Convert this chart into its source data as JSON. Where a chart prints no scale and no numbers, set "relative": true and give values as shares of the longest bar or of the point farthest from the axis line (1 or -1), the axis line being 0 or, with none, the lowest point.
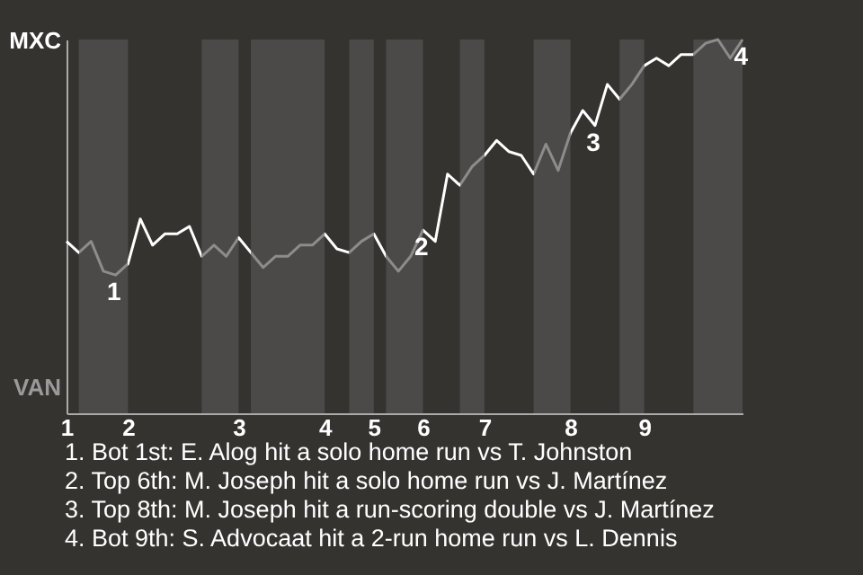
{
  "chart_data": {
    "type": "line",
    "categories": [
      "1",
      null,
      null,
      null,
      null,
      "2",
      null,
      null,
      null,
      null,
      null,
      null,
      null,
      null,
      "3",
      null,
      null,
      null,
      null,
      null,
      null,
      "4",
      null,
      null,
      null,
      "5",
      null,
      null,
      null,
      "6",
      null,
      null,
      null,
      null,
      "7",
      null,
      null,
      null,
      null,
      null,
      null,
      "8",
      null,
      null,
      null,
      null,
      null,
      "9",
      null,
      null,
      null,
      null,
      null,
      null,
      null,
      null
    ],
    "values": [
      0.46,
      0.43,
      0.46,
      0.38,
      0.37,
      0.4,
      0.52,
      0.45,
      0.48,
      0.48,
      0.5,
      0.42,
      0.45,
      0.42,
      0.47,
      0.43,
      0.39,
      0.42,
      0.42,
      0.45,
      0.45,
      0.48,
      0.44,
      0.43,
      0.46,
      0.48,
      0.42,
      0.38,
      0.42,
      0.49,
      0.46,
      0.64,
      0.61,
      0.66,
      0.69,
      0.73,
      0.7,
      0.69,
      0.64,
      0.72,
      0.65,
      0.75,
      0.81,
      0.77,
      0.88,
      0.84,
      0.88,
      0.93,
      0.95,
      0.93,
      0.96,
      0.96,
      0.99,
      1,
      0.95,
      1
    ],
    "colors": [
      "#ffffff",
      "#8c8c8c",
      "#8c8c8c",
      "#8c8c8c",
      "#8c8c8c",
      "#ffffff",
      "#ffffff",
      "#ffffff",
      "#ffffff",
      "#ffffff",
      "#ffffff",
      "#8c8c8c",
      "#8c8c8c",
      "#8c8c8c",
      "#ffffff",
      "#8c8c8c",
      "#8c8c8c",
      "#8c8c8c",
      "#8c8c8c",
      "#8c8c8c",
      "#8c8c8c",
      "#ffffff",
      "#ffffff",
      "#8c8c8c",
      "#8c8c8c",
      "#ffffff",
      "#8c8c8c",
      "#8c8c8c",
      "#8c8c8c",
      "#ffffff",
      "#ffffff",
      "#ffffff",
      "#8c8c8c",
      "#8c8c8c",
      "#ffffff",
      "#ffffff",
      "#ffffff",
      "#ffffff",
      "#8c8c8c",
      "#8c8c8c",
      "#8c8c8c",
      "#ffffff",
      "#ffffff",
      "#ffffff",
      "#ffffff",
      "#8c8c8c",
      "#8c8c8c",
      "#ffffff",
      "#ffffff",
      "#ffffff",
      "#ffffff",
      "#8c8c8c",
      "#8c8c8c",
      "#8c8c8c",
      "#8c8c8c",
      "#8c8c8c"
    ],
    "relative": true,
    "annotations": [
      "MXC",
      "VAN",
      {
        "text": "1",
        "y": 0.37
      },
      {
        "text": "2",
        "y": 0.49
      },
      {
        "text": "3",
        "y": 0.77
      },
      {
        "text": "4",
        "y": 1
      },
      "1. Bot 1st: E. Alog hit a solo home run vs T. Johnston",
      "2. Top 6th: M. Joseph hit a solo home run vs J. Martínez",
      "3. Top 8th: M. Joseph hit a run-scoring double vs J. Martínez",
      "4. Bot 9th: S. Advocaat hit a 2-run home run vs L. Dennis"
    ]
  }
}
